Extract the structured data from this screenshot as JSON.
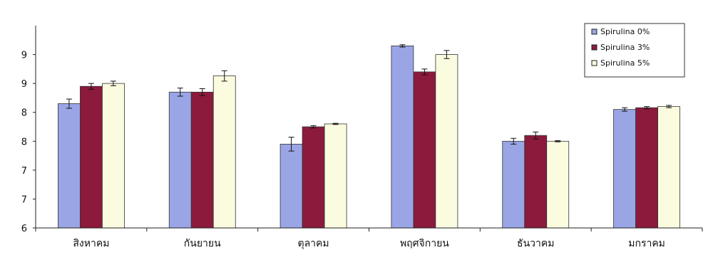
{
  "chart_data": {
    "type": "bar",
    "categories": [
      "สิงหาคม",
      "กันยายน",
      "ตุลาคม",
      "พฤศจิกายน",
      "ธันวาคม",
      "มกราคม"
    ],
    "series": [
      {
        "name": "Spirulina 0%",
        "color": "#9aa5e6",
        "values": [
          8.15,
          8.35,
          7.45,
          9.15,
          7.5,
          8.05
        ],
        "errors": [
          0.08,
          0.07,
          0.12,
          0.02,
          0.05,
          0.03
        ]
      },
      {
        "name": "Spirulina 3%",
        "color": "#8b1a3c",
        "values": [
          8.45,
          8.35,
          7.75,
          8.7,
          7.6,
          8.08
        ],
        "errors": [
          0.05,
          0.06,
          0.02,
          0.05,
          0.06,
          0.02
        ]
      },
      {
        "name": "Spirulina 5%",
        "color": "#fbfbe0",
        "values": [
          8.5,
          8.63,
          7.8,
          9.0,
          7.5,
          8.1
        ],
        "errors": [
          0.04,
          0.09,
          0.01,
          0.07,
          0.01,
          0.02
        ]
      }
    ],
    "ytick_labels": [
      "6",
      "7",
      "7",
      "8",
      "8",
      "9",
      "9"
    ],
    "ylim": [
      6,
      9.5
    ],
    "ytick_step": 0.5,
    "grid": false,
    "legend_position": "top-right"
  }
}
